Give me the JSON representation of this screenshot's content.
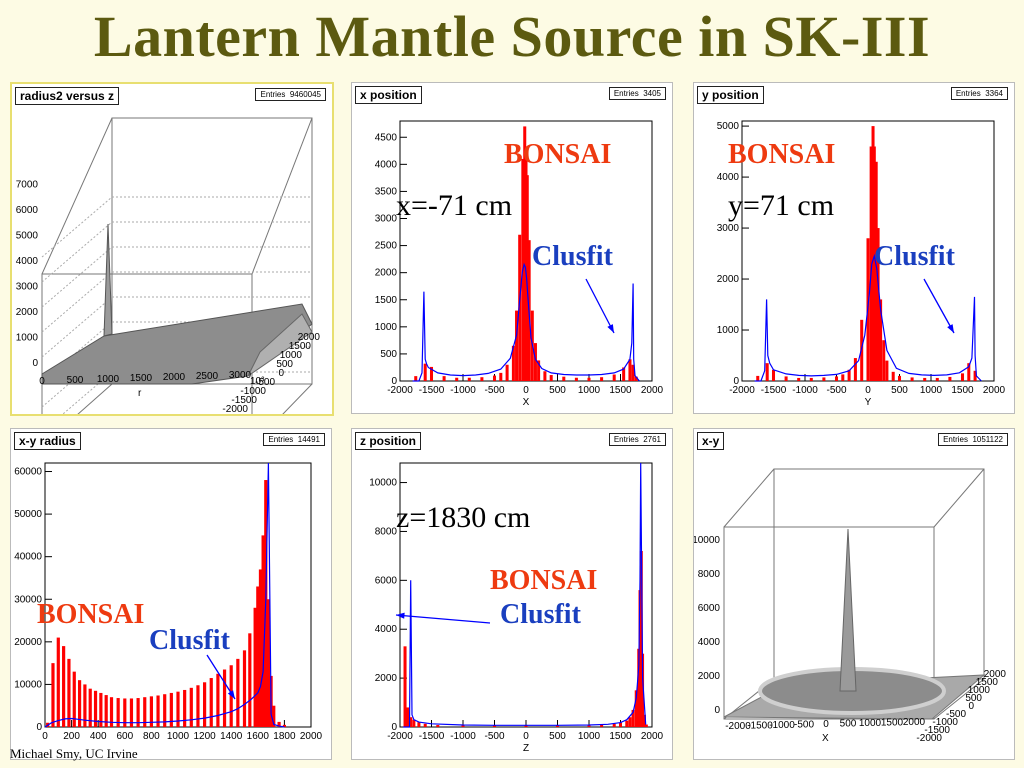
{
  "title": "Lantern Mantle Source in SK-III",
  "footer": "Michael Smy, UC Irvine",
  "colors": {
    "title": "#5c5a10",
    "bonsai": "#ff0000",
    "clusfit": "#0000ff",
    "label_red": "#ee3a10",
    "label_blue": "#1a3fbf"
  },
  "panels": {
    "r2z": {
      "title": "radius2 versus z",
      "entries_label": "Entries",
      "entries": "9460045",
      "z_ticks": [
        "0",
        "1000",
        "2000",
        "3000",
        "4000",
        "5000",
        "6000",
        "7000"
      ],
      "x_ticks": [
        "0",
        "500",
        "1000",
        "1500",
        "2000",
        "2500",
        "3000"
      ],
      "y_ticks": [
        "2000",
        "1500",
        "1000",
        "500",
        "0",
        "-500",
        "-1000",
        "-1500",
        "-2000"
      ],
      "x_label": "r",
      "y_unit": "10³"
    },
    "xpos": {
      "title": "x position",
      "entries_label": "Entries",
      "entries": "3405",
      "x_label": "X",
      "ann_bonsai": "BONSAI",
      "ann_value": "x=-71 cm",
      "ann_clusfit": "Clusfit"
    },
    "ypos": {
      "title": "y position",
      "entries_label": "Entries",
      "entries": "3364",
      "x_label": "Y",
      "ann_bonsai": "BONSAI",
      "ann_value": "y=71 cm",
      "ann_clusfit": "Clusfit"
    },
    "xyr": {
      "title": "x-y radius",
      "entries_label": "Entries",
      "entries": "14491",
      "ann_bonsai": "BONSAI",
      "ann_clusfit": "Clusfit"
    },
    "zpos": {
      "title": "z position",
      "entries_label": "Entries",
      "entries": "2761",
      "x_label": "Z",
      "ann_bonsai": "BONSAI",
      "ann_value": "z=1830 cm",
      "ann_clusfit": "Clusfit"
    },
    "xy": {
      "title": "x-y",
      "entries_label": "Entries",
      "entries": "1051122",
      "z_ticks": [
        "0",
        "2000",
        "4000",
        "6000",
        "8000",
        "10000"
      ],
      "x_ticks": [
        "-2000",
        "-1500",
        "-1000",
        "-500",
        "0",
        "500",
        "1000",
        "1500",
        "2000"
      ],
      "y_ticks": [
        "2000",
        "1500",
        "1000",
        "500",
        "0",
        "-500",
        "-1000",
        "-1500",
        "-2000"
      ],
      "x_label": "X"
    }
  },
  "chart_data": [
    {
      "id": "xpos",
      "type": "bar",
      "title": "x position",
      "xlabel": "X",
      "xlim": [
        -2000,
        2000
      ],
      "ylim": [
        0,
        4800
      ],
      "xticks": [
        -2000,
        -1500,
        -1000,
        -500,
        0,
        500,
        1000,
        1500,
        2000
      ],
      "yticks": [
        0,
        500,
        1000,
        1500,
        2000,
        2500,
        3000,
        3500,
        4000,
        4500
      ],
      "series": [
        {
          "name": "BONSAI",
          "kind": "bar",
          "x": [
            -1750,
            -1600,
            -1500,
            -1300,
            -1100,
            -900,
            -700,
            -500,
            -400,
            -300,
            -200,
            -150,
            -100,
            -50,
            -20,
            0,
            20,
            50,
            100,
            150,
            200,
            300,
            400,
            600,
            800,
            1000,
            1200,
            1400,
            1550,
            1650,
            1700,
            1750
          ],
          "y": [
            90,
            320,
            260,
            90,
            60,
            60,
            70,
            100,
            150,
            300,
            650,
            1300,
            2700,
            4100,
            4700,
            4300,
            3800,
            2600,
            1300,
            700,
            380,
            180,
            110,
            80,
            60,
            60,
            70,
            120,
            250,
            400,
            300,
            80
          ]
        },
        {
          "name": "Clusfit",
          "kind": "line",
          "x": [
            -1800,
            -1700,
            -1650,
            -1620,
            -1600,
            -1580,
            -1550,
            -1400,
            -1200,
            -1000,
            -800,
            -600,
            -400,
            -250,
            -150,
            -100,
            -60,
            -30,
            -10,
            10,
            40,
            80,
            150,
            250,
            400,
            600,
            800,
            1000,
            1200,
            1400,
            1550,
            1650,
            1680,
            1700,
            1710,
            1730,
            1800
          ],
          "y": [
            0,
            0,
            150,
            1650,
            400,
            320,
            250,
            150,
            110,
            100,
            110,
            140,
            220,
            420,
            850,
            1500,
            2000,
            2150,
            2100,
            1900,
            1400,
            800,
            400,
            230,
            150,
            120,
            110,
            110,
            120,
            150,
            220,
            400,
            700,
            1800,
            400,
            100,
            0
          ]
        }
      ]
    },
    {
      "id": "ypos",
      "type": "bar",
      "title": "y position",
      "xlabel": "Y",
      "xlim": [
        -2000,
        2000
      ],
      "ylim": [
        0,
        5100
      ],
      "xticks": [
        -2000,
        -1500,
        -1000,
        -500,
        0,
        500,
        1000,
        1500,
        2000
      ],
      "yticks": [
        0,
        1000,
        2000,
        3000,
        4000,
        5000
      ],
      "series": [
        {
          "name": "BONSAI",
          "kind": "bar",
          "x": [
            -1750,
            -1600,
            -1500,
            -1300,
            -1100,
            -900,
            -700,
            -500,
            -400,
            -300,
            -200,
            -100,
            0,
            50,
            80,
            100,
            130,
            160,
            200,
            250,
            300,
            400,
            500,
            700,
            900,
            1100,
            1300,
            1500,
            1600,
            1700
          ],
          "y": [
            100,
            350,
            220,
            90,
            60,
            60,
            70,
            90,
            130,
            220,
            450,
            1200,
            2800,
            4600,
            5000,
            4600,
            4300,
            3000,
            1600,
            800,
            400,
            180,
            100,
            70,
            60,
            60,
            80,
            150,
            350,
            200
          ]
        },
        {
          "name": "Clusfit",
          "kind": "line",
          "x": [
            -1800,
            -1700,
            -1640,
            -1610,
            -1590,
            -1560,
            -1500,
            -1300,
            -1100,
            -900,
            -700,
            -500,
            -300,
            -150,
            -50,
            20,
            60,
            100,
            140,
            200,
            300,
            450,
            650,
            850,
            1050,
            1250,
            1450,
            1600,
            1650,
            1690,
            1700,
            1720,
            1800
          ],
          "y": [
            0,
            0,
            200,
            1600,
            500,
            350,
            220,
            140,
            110,
            100,
            110,
            130,
            200,
            400,
            900,
            1700,
            2300,
            2450,
            2200,
            1400,
            600,
            250,
            150,
            120,
            110,
            120,
            160,
            280,
            450,
            1650,
            500,
            100,
            0
          ]
        }
      ]
    },
    {
      "id": "xyr",
      "type": "bar",
      "title": "x-y radius",
      "xlabel": "",
      "xlim": [
        0,
        2000
      ],
      "ylim": [
        0,
        62000
      ],
      "xticks": [
        0,
        200,
        400,
        600,
        800,
        1000,
        1200,
        1400,
        1600,
        1800,
        2000
      ],
      "yticks": [
        0,
        10000,
        20000,
        30000,
        40000,
        50000,
        60000
      ],
      "series": [
        {
          "name": "BONSAI",
          "kind": "bar",
          "x": [
            20,
            60,
            100,
            140,
            180,
            220,
            260,
            300,
            340,
            380,
            420,
            460,
            500,
            550,
            600,
            650,
            700,
            750,
            800,
            850,
            900,
            950,
            1000,
            1050,
            1100,
            1150,
            1200,
            1250,
            1300,
            1350,
            1400,
            1450,
            1500,
            1540,
            1580,
            1600,
            1620,
            1640,
            1660,
            1680,
            1700,
            1720,
            1760,
            1800
          ],
          "y": [
            1000,
            15000,
            21000,
            19000,
            16000,
            13000,
            11000,
            10000,
            9000,
            8500,
            8000,
            7500,
            7000,
            6800,
            6700,
            6700,
            6800,
            7000,
            7200,
            7400,
            7700,
            8000,
            8300,
            8700,
            9200,
            9800,
            10500,
            11500,
            12500,
            13500,
            14500,
            16000,
            18000,
            22000,
            28000,
            33000,
            37000,
            45000,
            58000,
            30000,
            12000,
            5000,
            1200,
            500
          ]
        },
        {
          "name": "Clusfit",
          "kind": "line",
          "x": [
            0,
            50,
            100,
            150,
            200,
            250,
            300,
            400,
            500,
            600,
            700,
            800,
            900,
            1000,
            1100,
            1200,
            1300,
            1400,
            1450,
            1500,
            1550,
            1600,
            1620,
            1640,
            1660,
            1680,
            1700,
            1720,
            1760,
            1800
          ],
          "y": [
            0,
            1000,
            1500,
            1900,
            2000,
            1800,
            1600,
            1300,
            1100,
            1000,
            1000,
            1100,
            1200,
            1400,
            1700,
            2100,
            2700,
            3600,
            4300,
            5300,
            6500,
            8000,
            9500,
            13000,
            30000,
            62000,
            3000,
            600,
            200,
            0
          ]
        }
      ]
    },
    {
      "id": "zpos",
      "type": "bar",
      "title": "z position",
      "xlabel": "Z",
      "xlim": [
        -2000,
        2000
      ],
      "ylim": [
        0,
        10800
      ],
      "xticks": [
        -2000,
        -1500,
        -1000,
        -500,
        0,
        500,
        1000,
        1500,
        2000
      ],
      "yticks": [
        0,
        2000,
        4000,
        6000,
        8000,
        10000
      ],
      "series": [
        {
          "name": "BONSAI",
          "kind": "bar",
          "x": [
            -1920,
            -1880,
            -1830,
            -1780,
            -1700,
            -1600,
            -1400,
            -1000,
            -500,
            0,
            500,
            1000,
            1200,
            1400,
            1500,
            1600,
            1650,
            1700,
            1750,
            1790,
            1810,
            1830,
            1850,
            1880,
            1910
          ],
          "y": [
            3300,
            800,
            400,
            300,
            200,
            130,
            80,
            60,
            60,
            60,
            60,
            70,
            90,
            130,
            180,
            260,
            400,
            700,
            1500,
            3200,
            5600,
            7200,
            3000,
            500,
            100
          ]
        },
        {
          "name": "Clusfit",
          "kind": "line",
          "x": [
            -1950,
            -1850,
            -1830,
            -1810,
            -1780,
            -1700,
            -1500,
            -1000,
            -500,
            0,
            500,
            1000,
            1300,
            1500,
            1600,
            1700,
            1750,
            1790,
            1810,
            1820,
            1830,
            1850,
            1900
          ],
          "y": [
            0,
            0,
            6000,
            500,
            300,
            200,
            130,
            80,
            70,
            70,
            70,
            80,
            110,
            180,
            300,
            600,
            1200,
            2500,
            6000,
            11000,
            8000,
            2000,
            100
          ]
        }
      ]
    }
  ]
}
